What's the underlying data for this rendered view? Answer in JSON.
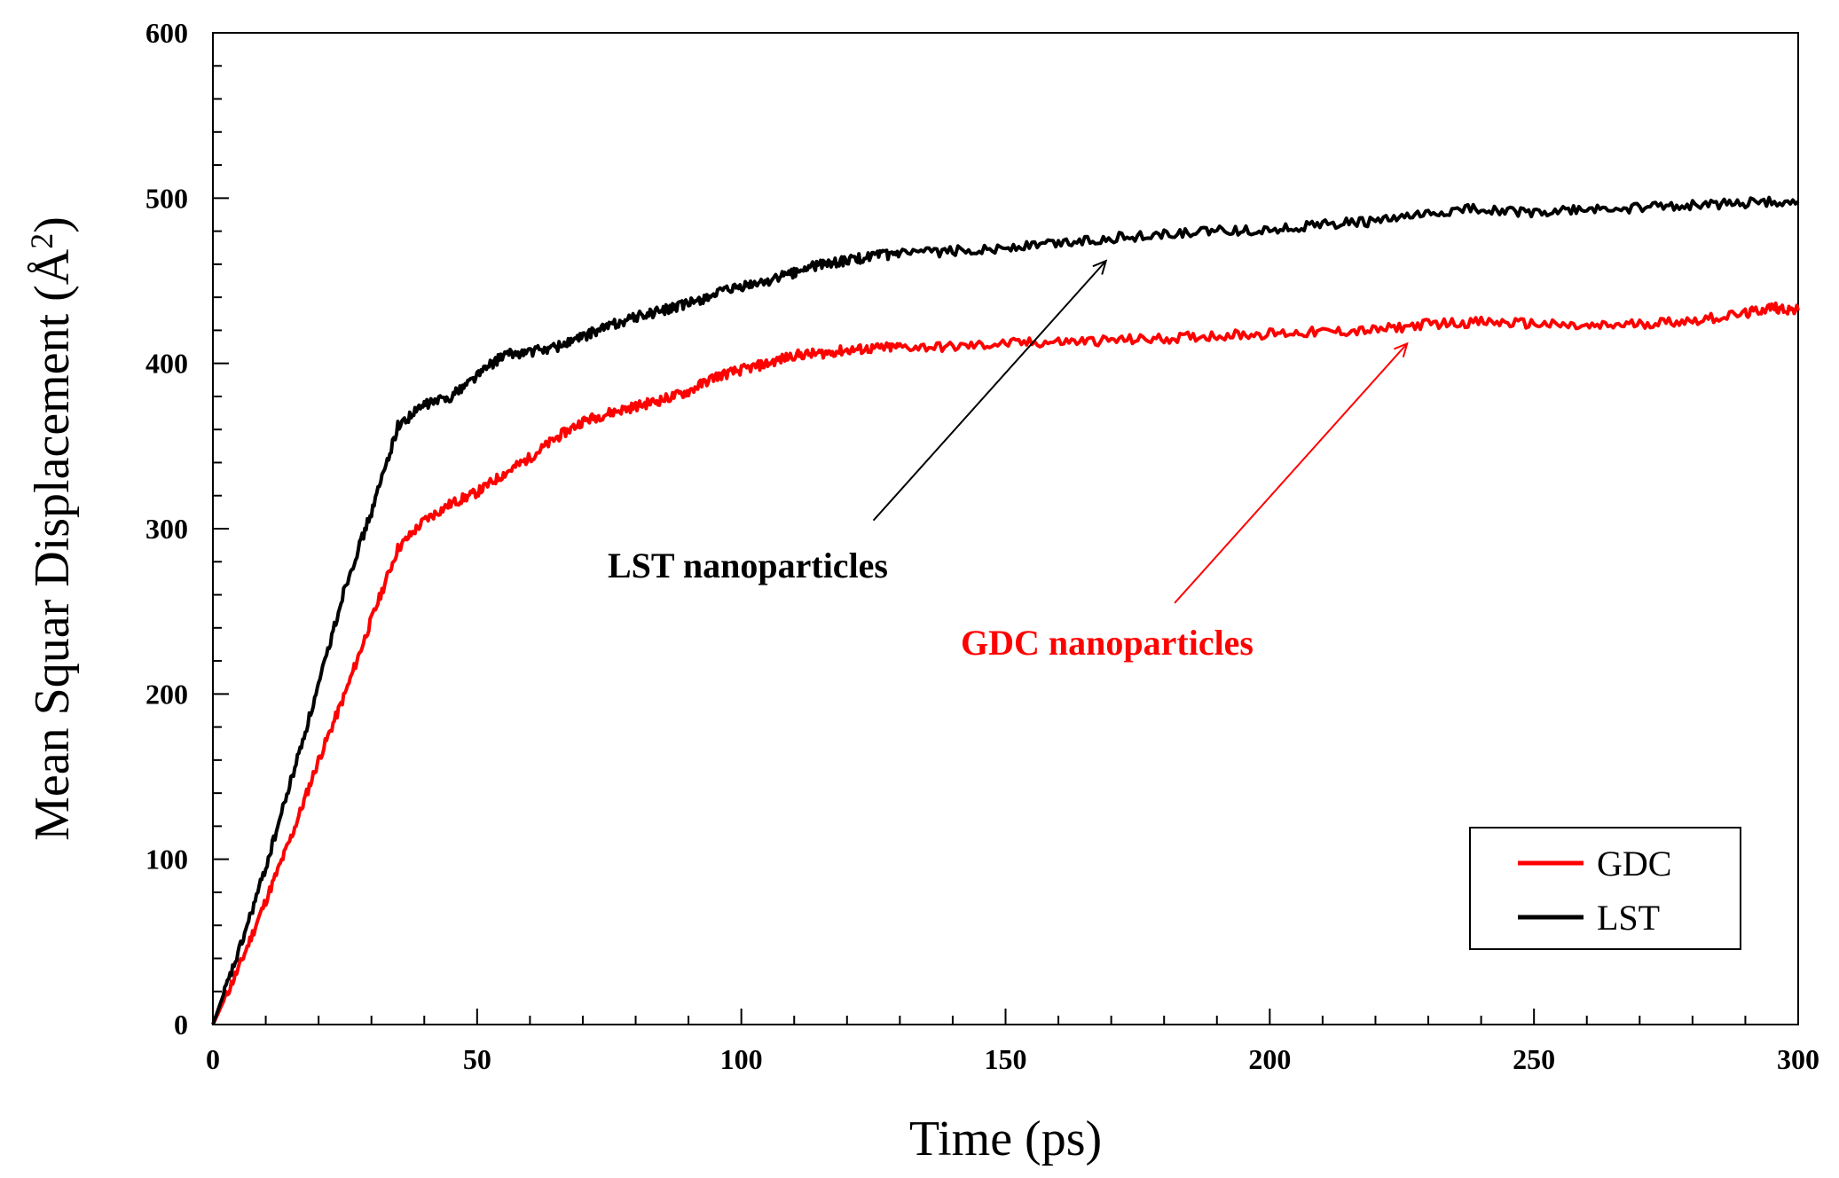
{
  "chart_data": {
    "type": "line",
    "title": "",
    "xlabel": "Time (ps)",
    "ylabel_main": "Mean Squar Displacement (Å",
    "ylabel_sup": "2",
    "ylabel_close": ")",
    "xlim": [
      0,
      300
    ],
    "ylim": [
      0,
      600
    ],
    "xticks": [
      0,
      50,
      100,
      150,
      200,
      250,
      300
    ],
    "yticks": [
      0,
      100,
      200,
      300,
      400,
      500,
      600
    ],
    "xtick_labels": [
      "0",
      "50",
      "100",
      "150",
      "200",
      "250",
      "300"
    ],
    "ytick_labels": [
      "0",
      "100",
      "200",
      "300",
      "400",
      "500",
      "600"
    ],
    "grid": false,
    "legend_position": "bottom-right",
    "series": [
      {
        "name": "GDC",
        "color": "#ff0000",
        "x": [
          0,
          5,
          10,
          15,
          20,
          25,
          30,
          35,
          40,
          45,
          50,
          55,
          60,
          65,
          70,
          75,
          80,
          85,
          90,
          95,
          100,
          105,
          110,
          115,
          120,
          125,
          130,
          140,
          150,
          160,
          170,
          180,
          190,
          200,
          210,
          220,
          230,
          240,
          250,
          260,
          270,
          280,
          290,
          295,
          300
        ],
        "values": [
          0,
          35,
          75,
          115,
          160,
          200,
          245,
          288,
          305,
          315,
          322,
          333,
          343,
          355,
          365,
          370,
          374,
          378,
          383,
          392,
          396,
          400,
          405,
          406,
          408,
          409,
          410,
          410,
          412,
          413,
          414,
          415,
          417,
          418,
          419,
          420,
          424,
          425,
          424,
          422,
          424,
          426,
          430,
          434,
          432
        ]
      },
      {
        "name": "LST",
        "color": "#000000",
        "x": [
          0,
          5,
          10,
          15,
          20,
          25,
          30,
          35,
          40,
          45,
          50,
          55,
          60,
          65,
          70,
          75,
          80,
          85,
          90,
          95,
          100,
          105,
          110,
          115,
          120,
          125,
          130,
          140,
          150,
          160,
          170,
          180,
          190,
          200,
          210,
          220,
          230,
          240,
          250,
          260,
          270,
          280,
          290,
          300
        ],
        "values": [
          0,
          45,
          95,
          150,
          205,
          265,
          310,
          362,
          375,
          380,
          393,
          405,
          407,
          410,
          416,
          423,
          428,
          432,
          436,
          442,
          446,
          450,
          455,
          460,
          462,
          465,
          466,
          468,
          470,
          473,
          476,
          478,
          480,
          481,
          484,
          486,
          490,
          494,
          491,
          493,
          494,
          496,
          497,
          498
        ]
      }
    ],
    "annotations": [
      {
        "text": "LST nanoparticles",
        "color": "#000000",
        "arrow_tail": [
          125,
          305
        ],
        "arrow_head": [
          169,
          462
        ]
      },
      {
        "text": "GDC nanoparticles",
        "color": "#ff0000",
        "arrow_tail": [
          182,
          255
        ],
        "arrow_head": [
          226,
          412
        ]
      }
    ]
  }
}
